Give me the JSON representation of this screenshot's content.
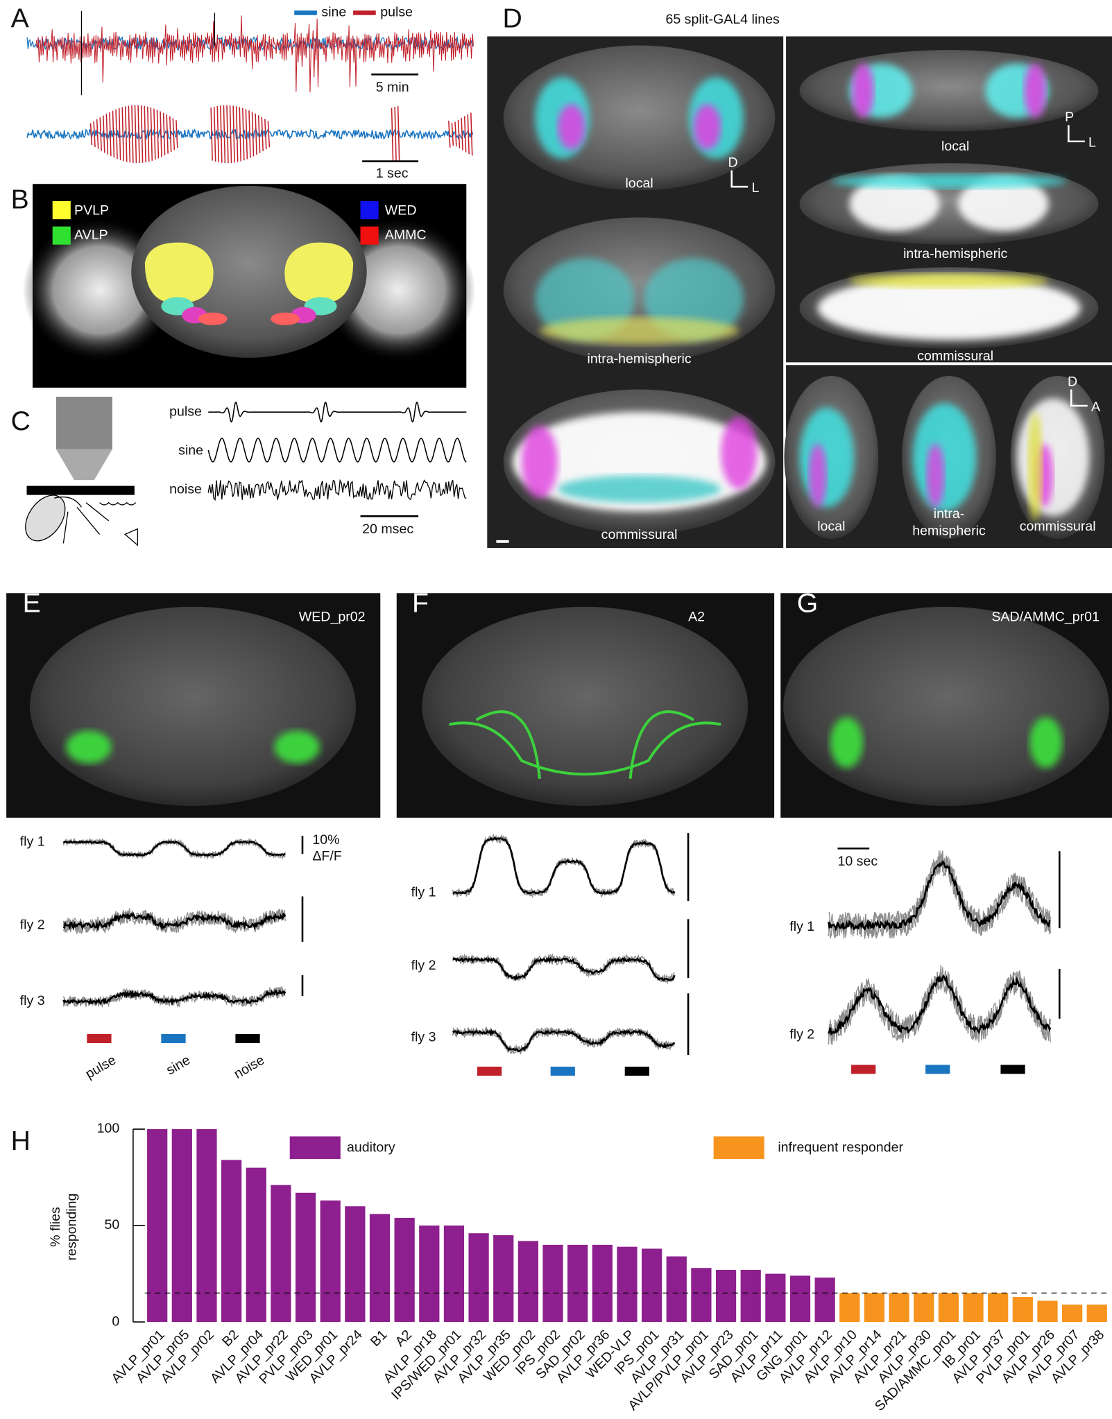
{
  "panels": {
    "A": {
      "label": "A",
      "legend": [
        "sine",
        "pulse"
      ],
      "scale_bars": [
        "5 min",
        "1 sec"
      ]
    },
    "B": {
      "label": "B",
      "regions": [
        "PVLP",
        "AVLP",
        "WED",
        "AMMC"
      ]
    },
    "C": {
      "label": "C",
      "stimuli": [
        "pulse",
        "sine",
        "noise"
      ],
      "scale_bar": "20 msec"
    },
    "D": {
      "label": "D",
      "title": "65 split-GAL4 lines",
      "frontal": [
        "local",
        "intra-hemispheric",
        "commissural"
      ],
      "dorsal": [
        "local",
        "intra-hemispheric",
        "commissural"
      ],
      "lateral": [
        "local",
        "intra-",
        "hemispheric",
        "commissural"
      ],
      "axes": [
        "D",
        "L",
        "P",
        "L",
        "D",
        "A"
      ]
    },
    "E": {
      "label": "E",
      "line": "WED_pr02",
      "flies": [
        "fly 1",
        "fly 2",
        "fly 3"
      ],
      "scale": [
        "10%",
        "ΔF/F"
      ],
      "stimuli": [
        "pulse",
        "sine",
        "noise"
      ]
    },
    "F": {
      "label": "F",
      "line": "A2",
      "flies": [
        "fly 1",
        "fly 2",
        "fly 3"
      ]
    },
    "G": {
      "label": "G",
      "line": "SAD/AMMC_pr01",
      "flies": [
        "fly 1",
        "fly 2"
      ],
      "scale": "10 sec"
    },
    "H": {
      "label": "H"
    }
  },
  "chart_data": {
    "type": "bar",
    "ylabel": [
      "% flies",
      "responding"
    ],
    "categories": [
      "AVLP_pr01",
      "AVLP_pr05",
      "AVLP_pr02",
      "B2",
      "AVLP_pr04",
      "AVLP_pr22",
      "PVLP_pr03",
      "WED_pr01",
      "AVLP_pr24",
      "B1",
      "A2",
      "AVLP_pr18",
      "IPS/WED_pr01",
      "AVLP_pr32",
      "AVLP_pr35",
      "WED_pr02",
      "IPS_pr02",
      "SAD_pr02",
      "AVLP_pr36",
      "WED-VLP",
      "IPS_pr01",
      "AVLP_pr31",
      "AVLP/PVLP_pr01",
      "AVLP_pr23",
      "SAD_pr01",
      "AVLP_pr11",
      "GNG_pr01",
      "AVLP_pr12",
      "AVLP_pr10",
      "AVLP_pr14",
      "AVLP_pr21",
      "AVLP_pr30",
      "SAD/AMMC_pr01",
      "IB_pr01",
      "AVLP_pr37",
      "PVLP_pr01",
      "AVLP_pr26",
      "AVLP_pr07",
      "AVLP_pr38"
    ],
    "series": [
      {
        "name": "auditory",
        "color": "#8e1f8e",
        "values": [
          100,
          100,
          100,
          84,
          80,
          71,
          67,
          63,
          60,
          56,
          54,
          50,
          50,
          46,
          45,
          42,
          40,
          40,
          40,
          39,
          38,
          34,
          28,
          27,
          27,
          25,
          24,
          23,
          null,
          null,
          null,
          null,
          null,
          null,
          null,
          null,
          null,
          null,
          null
        ]
      },
      {
        "name": "infrequent responder",
        "color": "#f7941d",
        "values": [
          null,
          null,
          null,
          null,
          null,
          null,
          null,
          null,
          null,
          null,
          null,
          null,
          null,
          null,
          null,
          null,
          null,
          null,
          null,
          null,
          null,
          null,
          null,
          null,
          null,
          null,
          null,
          null,
          15,
          15,
          15,
          15,
          15,
          15,
          15,
          13,
          11,
          9,
          9
        ]
      }
    ],
    "threshold": 15,
    "ylim": [
      0,
      100
    ],
    "yticks": [
      0,
      50,
      100
    ]
  }
}
